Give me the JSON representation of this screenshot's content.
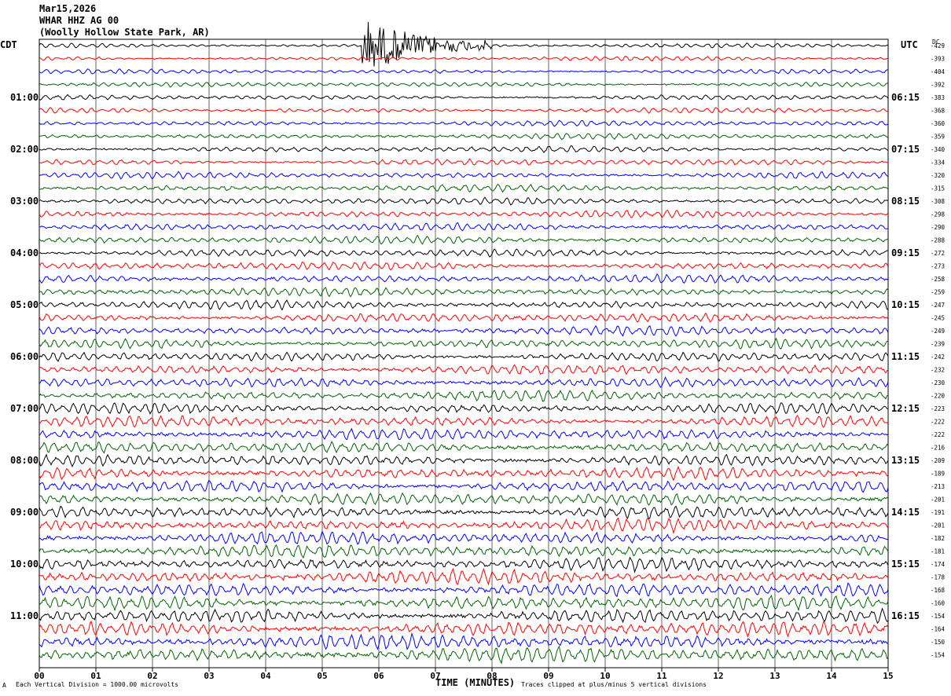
{
  "header": {
    "date": "Mar15,2026",
    "station": "WHAR HHZ AG 00",
    "location": "(Woolly Hollow State Park, AR)"
  },
  "left_zone_label": "CDT",
  "right_zone_label": "UTC",
  "dc_label": "DC",
  "footer": {
    "scale_note": "Each Vertical Division = 1000.00 microvolts",
    "x_axis_title": "TIME (MINUTES)",
    "clip_note": "Traces clipped at plus/minus 5 vertical divisions",
    "corner_mark": "A"
  },
  "chart_data": {
    "type": "line",
    "title": "",
    "xlabel": "TIME (MINUTES)",
    "xlim": [
      0,
      15
    ],
    "x_ticks": [
      "00",
      "01",
      "02",
      "03",
      "04",
      "05",
      "06",
      "07",
      "08",
      "09",
      "10",
      "11",
      "12",
      "13",
      "14",
      "15"
    ],
    "trace_minutes": 15,
    "trace_count": 48,
    "trace_colors": [
      "#000000",
      "#ff0000",
      "#0000ff",
      "#006400"
    ],
    "left_time_labels": [
      "01:00",
      "02:00",
      "03:00",
      "04:00",
      "05:00",
      "06:00",
      "07:00",
      "08:00",
      "09:00",
      "10:00",
      "11:00"
    ],
    "right_time_labels": [
      "06:15",
      "07:15",
      "08:15",
      "09:15",
      "10:15",
      "11:15",
      "12:15",
      "13:15",
      "14:15",
      "15:15",
      "16:15"
    ],
    "dc_offsets": [
      -429,
      -393,
      -404,
      -392,
      -383,
      -368,
      -360,
      -359,
      -340,
      -334,
      -320,
      -315,
      -308,
      -298,
      -290,
      -288,
      -272,
      -273,
      -258,
      -259,
      -247,
      -245,
      -249,
      -239,
      -242,
      -232,
      -230,
      -220,
      -223,
      -222,
      -222,
      -216,
      -209,
      -189,
      -213,
      -201,
      -191,
      -201,
      -182,
      -181,
      -174,
      -178,
      -168,
      -160,
      -154,
      -164,
      -150,
      -154
    ],
    "event": {
      "trace_index": 0,
      "start_minute": 5.7,
      "end_minute": 8.0,
      "label": ""
    }
  }
}
